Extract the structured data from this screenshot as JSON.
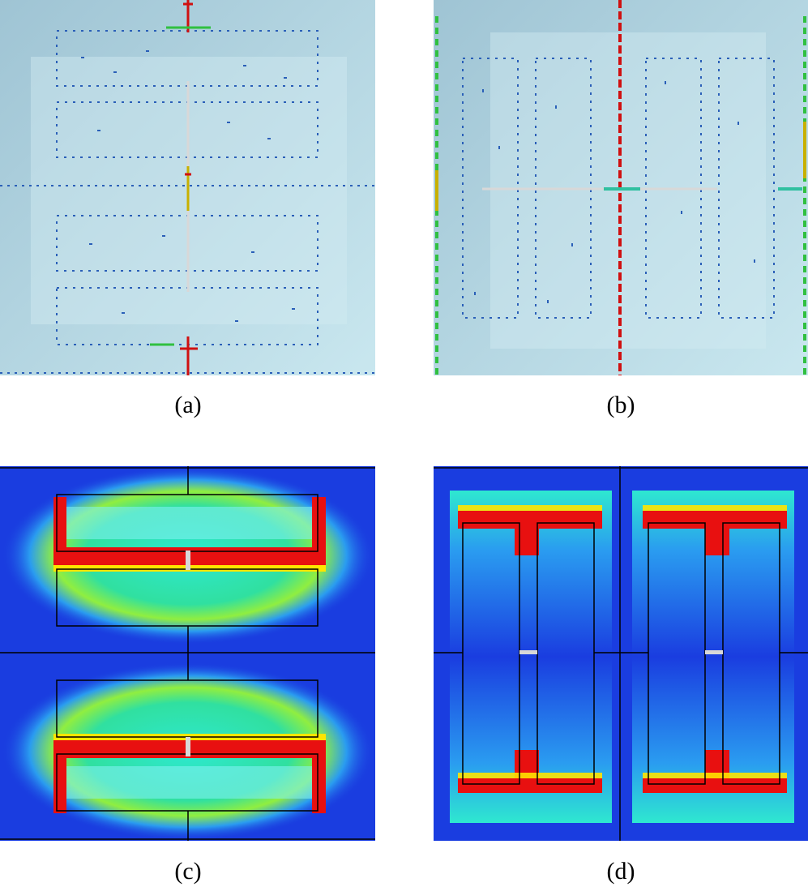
{
  "figure": {
    "panels": [
      {
        "id": "a",
        "label": "(a)",
        "kind": "surface-current-vectors",
        "orientation": "horizontal-pairs"
      },
      {
        "id": "b",
        "label": "(b)",
        "kind": "surface-current-vectors",
        "orientation": "vertical-pairs"
      },
      {
        "id": "c",
        "label": "(c)",
        "kind": "field-magnitude-heatmap",
        "orientation": "horizontal-pairs"
      },
      {
        "id": "d",
        "label": "(d)",
        "kind": "field-magnitude-heatmap",
        "orientation": "vertical-pairs"
      }
    ],
    "colors": {
      "vector_background": "#b8d9e6",
      "heatmap_background": "#1a3de0",
      "heat_low": "#2a7cf0",
      "heat_mid": "#2ee8d0",
      "heat_high": "#ffe400",
      "heat_peak": "#e81010",
      "arrow_low": "#2a5fb8",
      "arrow_mid": "#30c0a0",
      "arrow_high": "#d01010",
      "outline": "#000000",
      "gap": "#d8d8d8"
    }
  }
}
